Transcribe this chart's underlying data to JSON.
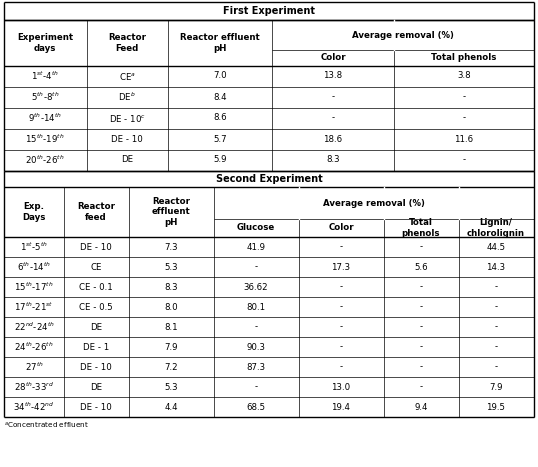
{
  "fig_width": 5.38,
  "fig_height": 4.67,
  "dpi": 100,
  "background_color": "#ffffff",
  "first_experiment_rows": [
    [
      "1$^{st}$-4$^{th}$",
      "CE$^{a}$",
      "7.0",
      "13.8",
      "3.8"
    ],
    [
      "5$^{th}$-8$^{th}$",
      "DE$^{b}$",
      "8.4",
      "-",
      "-"
    ],
    [
      "9$^{th}$-14$^{th}$",
      "DE - 10$^{c}$",
      "8.6",
      "-",
      "-"
    ],
    [
      "15$^{th}$-19$^{th}$",
      "DE - 10",
      "5.7",
      "18.6",
      "11.6"
    ],
    [
      "20$^{th}$-26$^{th}$",
      "DE",
      "5.9",
      "8.3",
      "-"
    ]
  ],
  "second_experiment_rows": [
    [
      "1$^{st}$-5$^{th}$",
      "DE - 10",
      "7.3",
      "41.9",
      "-",
      "-",
      "44.5"
    ],
    [
      "6$^{th}$-14$^{th}$",
      "CE",
      "5.3",
      "-",
      "17.3",
      "5.6",
      "14.3"
    ],
    [
      "15$^{th}$-17$^{th}$",
      "CE - 0.1",
      "8.3",
      "36.62",
      "-",
      "-",
      "-"
    ],
    [
      "17$^{th}$-21$^{st}$",
      "CE - 0.5",
      "8.0",
      "80.1",
      "-",
      "-",
      "-"
    ],
    [
      "22$^{nd}$-24$^{th}$",
      "DE",
      "8.1",
      "-",
      "-",
      "-",
      "-"
    ],
    [
      "24$^{th}$-26$^{th}$",
      "DE - 1",
      "7.9",
      "90.3",
      "-",
      "-",
      "-"
    ],
    [
      "27$^{th}$",
      "DE - 10",
      "7.2",
      "87.3",
      "-",
      "-",
      "-"
    ],
    [
      "28$^{th}$-33$^{rd}$",
      "DE",
      "5.3",
      "-",
      "13.0",
      "-",
      "7.9"
    ],
    [
      "34$^{th}$-42$^{nd}$",
      "DE - 10",
      "4.4",
      "68.5",
      "19.4",
      "9.4",
      "19.5"
    ]
  ],
  "fs_title": 7.0,
  "fs_header": 6.2,
  "fs_data": 6.2,
  "fs_note": 5.2,
  "lw_thick": 1.0,
  "lw_thin": 0.5
}
